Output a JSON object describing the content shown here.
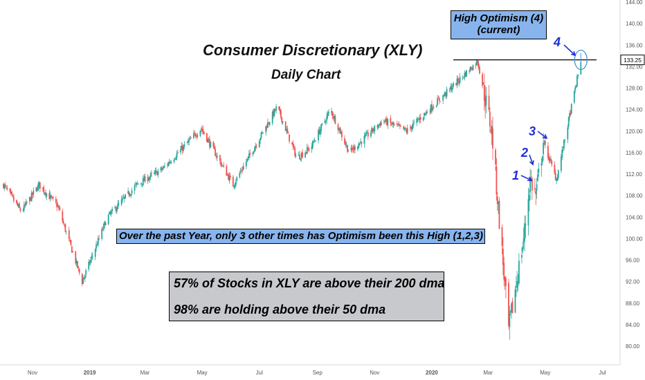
{
  "chart_data": {
    "type": "candlestick",
    "title": "Consumer Discretionary (XLY)",
    "subtitle": "Daily Chart",
    "ylim": [
      78,
      146
    ],
    "y_ticks": [
      80,
      84,
      88,
      92,
      96,
      100,
      104,
      108,
      112,
      116,
      120,
      124,
      128,
      132,
      136,
      140,
      144
    ],
    "y_tick_labels": [
      "80.00",
      "84.00",
      "88.00",
      "92.00",
      "96.00",
      "100.00",
      "104.00",
      "108.00",
      "112.00",
      "116.00",
      "120.00",
      "124.00",
      "128.00",
      "132.00",
      "136.00",
      "140.00",
      "144.00"
    ],
    "x_tick_labels": [
      "Nov",
      "2019",
      "Mar",
      "May",
      "Jul",
      "Sep",
      "Nov",
      "2020",
      "Mar",
      "May",
      "Jul"
    ],
    "last_price_label": "133.25",
    "last_price": 133.25,
    "up_color": "#26a69a",
    "down_color": "#ef5350",
    "key_points": [
      {
        "date": "2018-10-01",
        "price": 110
      },
      {
        "date": "2018-10-20",
        "price": 105
      },
      {
        "date": "2018-11-08",
        "price": 110
      },
      {
        "date": "2018-11-28",
        "price": 106
      },
      {
        "date": "2018-12-24",
        "price": 92
      },
      {
        "date": "2019-01-20",
        "price": 104
      },
      {
        "date": "2019-02-20",
        "price": 110
      },
      {
        "date": "2019-03-20",
        "price": 113
      },
      {
        "date": "2019-04-30",
        "price": 120.5
      },
      {
        "date": "2019-06-03",
        "price": 110
      },
      {
        "date": "2019-07-20",
        "price": 124.5
      },
      {
        "date": "2019-08-10",
        "price": 115
      },
      {
        "date": "2019-08-25",
        "price": 117
      },
      {
        "date": "2019-09-15",
        "price": 124
      },
      {
        "date": "2019-10-05",
        "price": 116
      },
      {
        "date": "2019-11-10",
        "price": 122
      },
      {
        "date": "2019-12-05",
        "price": 120
      },
      {
        "date": "2020-01-10",
        "price": 126
      },
      {
        "date": "2020-02-19",
        "price": 133
      },
      {
        "date": "2020-03-05",
        "price": 120
      },
      {
        "date": "2020-03-23",
        "price": 83
      },
      {
        "date": "2020-04-08",
        "price": 100
      },
      {
        "date": "2020-04-15",
        "price": 111
      },
      {
        "date": "2020-04-21",
        "price": 108
      },
      {
        "date": "2020-04-29",
        "price": 118
      },
      {
        "date": "2020-05-13",
        "price": 111
      },
      {
        "date": "2020-06-08",
        "price": 133
      }
    ],
    "annotations": [
      {
        "id": "1",
        "date": "2020-04-15",
        "price": 111.5
      },
      {
        "id": "2",
        "date": "2020-04-20",
        "price": 113
      },
      {
        "id": "3",
        "date": "2020-04-29",
        "price": 118
      },
      {
        "id": "4",
        "date": "2020-06-08",
        "price": 133.25
      }
    ],
    "horizontal_line": 133.25
  },
  "text": {
    "title": "Consumer Discretionary (XLY)",
    "subtitle": "Daily Chart",
    "optimism_line1": "High Optimism (4)",
    "optimism_line2": "(current)",
    "past_year_note": "Over the past Year, only 3 other times has Optimism been this High (1,2,3)",
    "stat_line1": "57% of Stocks in XLY are above their 200 dma",
    "stat_line2": "98% are holding above their 50 dma",
    "marker1": "1",
    "marker2": "2",
    "marker3": "3",
    "marker4": "4"
  },
  "colors": {
    "optimism_box_bg": "#88b4ee",
    "note_box_bg": "#88b4ee",
    "stats_box_bg": "#c8c9cc",
    "callout": "#1f2fd6"
  }
}
